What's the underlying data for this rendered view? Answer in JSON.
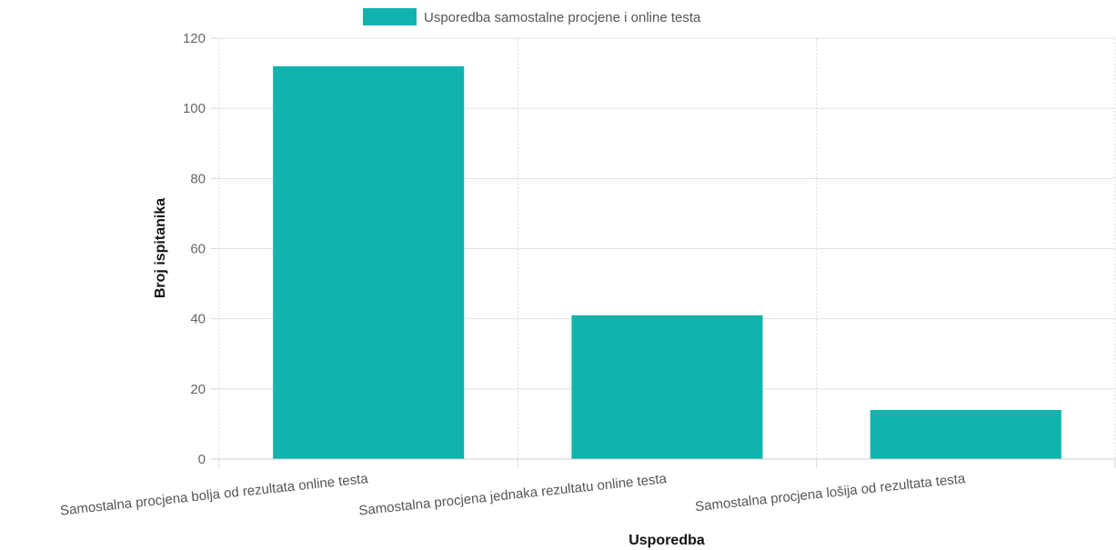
{
  "chart_data": {
    "type": "bar",
    "categories": [
      "Samostalna procjena bolja od rezultata online testa",
      "Samostalna procjena jednaka rezultatu online testa",
      "Samostalna procjena lošija od rezultata testa"
    ],
    "series": [
      {
        "name": "Usporedba samostalne procjene i online testa",
        "values": [
          112,
          41,
          14
        ],
        "color": "#12b3ad"
      }
    ],
    "xlabel": "Usporedba",
    "ylabel": "Broj ispitanika",
    "ylim": [
      0,
      120
    ],
    "yticks": [
      "0",
      "20",
      "40",
      "60",
      "80",
      "100",
      "120"
    ],
    "grid": true,
    "legend_position": "top-center"
  }
}
